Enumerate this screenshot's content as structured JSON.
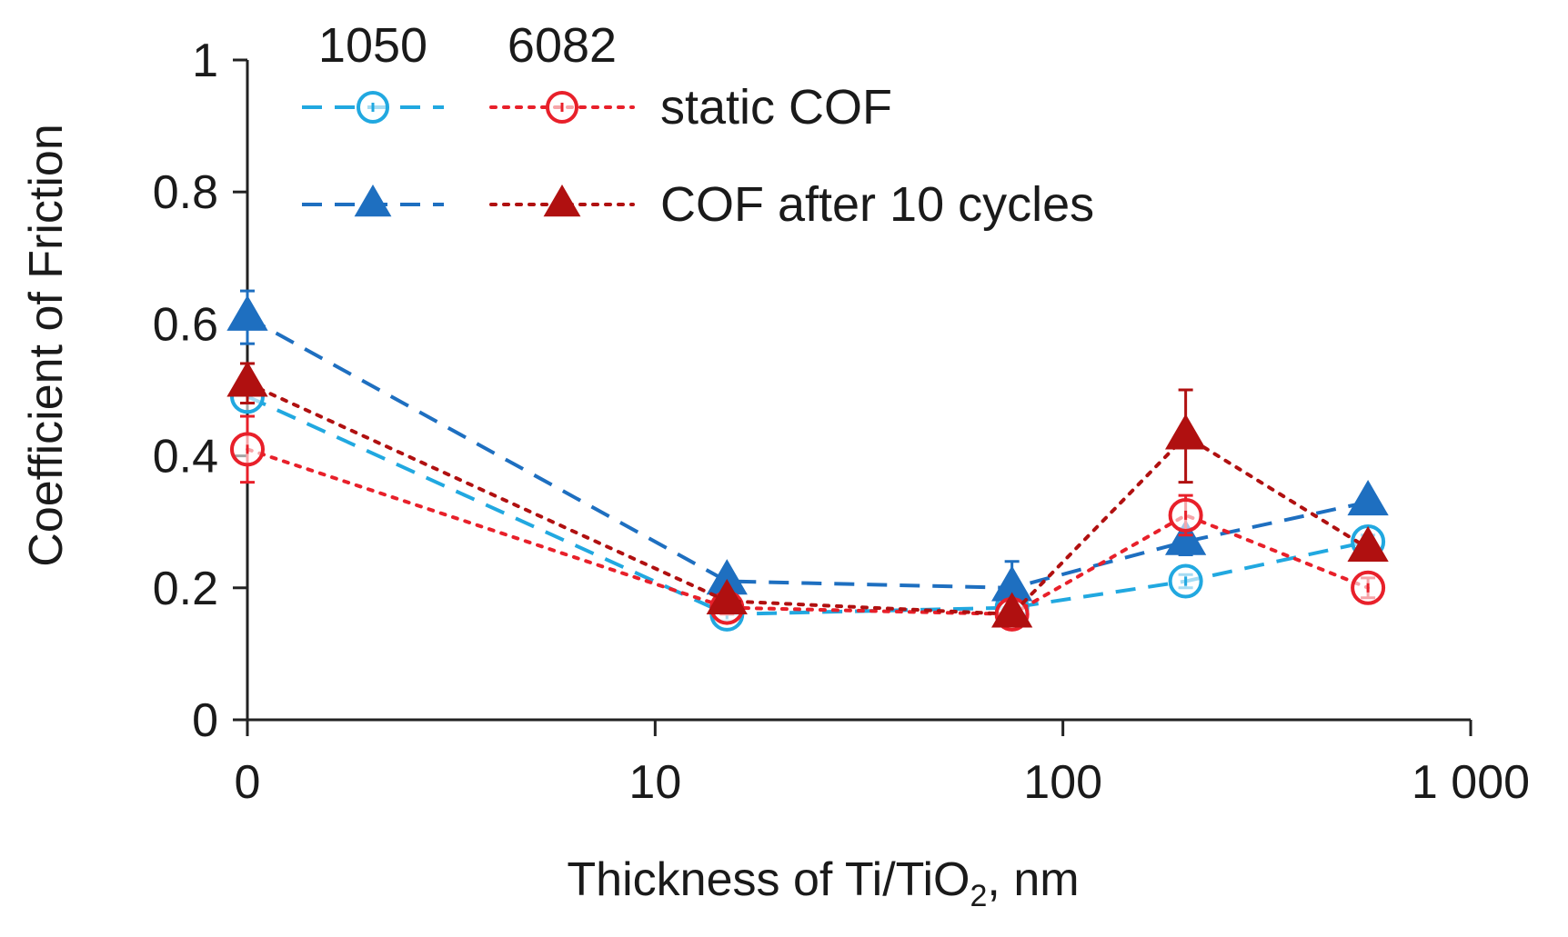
{
  "chart_data": {
    "type": "line",
    "title": "",
    "xlabel_main": "Thickness of Ti/TiO",
    "xlabel_sub": "2",
    "xlabel_tail": ", nm",
    "ylabel": "Coefficient of Friction",
    "x_scale": "log-with-zero",
    "x_ticks": [
      {
        "value": 0,
        "label": "0"
      },
      {
        "value": 10,
        "label": "10"
      },
      {
        "value": 100,
        "label": "100"
      },
      {
        "value": 1000,
        "label": "1 000"
      }
    ],
    "ylim": [
      0,
      1
    ],
    "y_ticks": [
      {
        "value": 0,
        "label": "0"
      },
      {
        "value": 0.2,
        "label": "0.2"
      },
      {
        "value": 0.4,
        "label": "0.4"
      },
      {
        "value": 0.6,
        "label": "0.6"
      },
      {
        "value": 0.8,
        "label": "0.8"
      },
      {
        "value": 1,
        "label": "1"
      }
    ],
    "legend": {
      "placement": "top",
      "col_headers": [
        "1050",
        "6082"
      ],
      "row_labels": [
        "static COF",
        "COF after 10 cycles"
      ]
    },
    "series": [
      {
        "name": "1050 static COF",
        "alloy": "1050",
        "color": "#21a8e0",
        "marker": "circle-open",
        "line": "dash",
        "x": [
          0,
          15,
          75,
          200,
          560
        ],
        "y": [
          0.49,
          0.16,
          0.17,
          0.21,
          0.27
        ],
        "err": [
          0.01,
          0.01,
          0.01,
          0.01,
          0.01
        ]
      },
      {
        "name": "1050 COF after 10 cycles",
        "alloy": "1050",
        "color": "#1e6fc0",
        "marker": "triangle-filled",
        "line": "dash",
        "x": [
          0,
          15,
          75,
          200,
          560
        ],
        "y": [
          0.61,
          0.21,
          0.2,
          0.27,
          0.33
        ],
        "err": [
          0.04,
          0.01,
          0.04,
          0.02,
          0.01
        ]
      },
      {
        "name": "6082 static COF",
        "alloy": "6082",
        "color": "#e8202a",
        "marker": "circle-open",
        "line": "dot",
        "x": [
          0,
          15,
          75,
          200,
          560
        ],
        "y": [
          0.41,
          0.17,
          0.16,
          0.31,
          0.2
        ],
        "err": [
          0.05,
          0.01,
          0.01,
          0.03,
          0.015
        ]
      },
      {
        "name": "6082 COF after 10 cycles",
        "alloy": "6082",
        "color": "#b01010",
        "marker": "triangle-filled",
        "line": "dot",
        "x": [
          0,
          15,
          75,
          200,
          560
        ],
        "y": [
          0.51,
          0.18,
          0.16,
          0.43,
          0.26
        ],
        "err": [
          0.03,
          0.01,
          0.01,
          0.07,
          0.01
        ]
      }
    ]
  }
}
